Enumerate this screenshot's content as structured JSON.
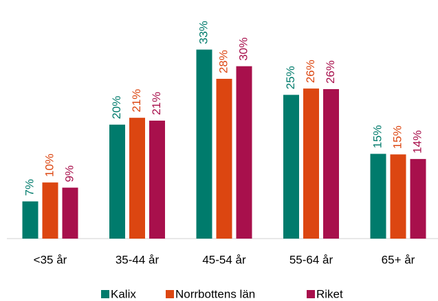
{
  "chart_data": {
    "type": "bar",
    "categories": [
      "<35 år",
      "35-44 år",
      "45-54 år",
      "55-64 år",
      "65+ år"
    ],
    "series": [
      {
        "name": "Kalix",
        "color": "#007b6c",
        "values": [
          6.5,
          19.9,
          33,
          25.1,
          14.8
        ],
        "value_labels": [
          "7%",
          "20%",
          "33%",
          "25%",
          "15%"
        ]
      },
      {
        "name": "Norrbottens län",
        "color": "#dc4611",
        "values": [
          9.8,
          21.1,
          27.9,
          26.2,
          14.7
        ],
        "value_labels": [
          "10%",
          "21%",
          "28%",
          "26%",
          "15%"
        ]
      },
      {
        "name": "Riket",
        "color": "#a8104c",
        "values": [
          8.9,
          20.6,
          30.1,
          26.1,
          13.9
        ],
        "value_labels": [
          "9%",
          "21%",
          "30%",
          "26%",
          "14%"
        ]
      }
    ],
    "ylim": [
      0,
      34
    ],
    "legend": "bottom"
  }
}
